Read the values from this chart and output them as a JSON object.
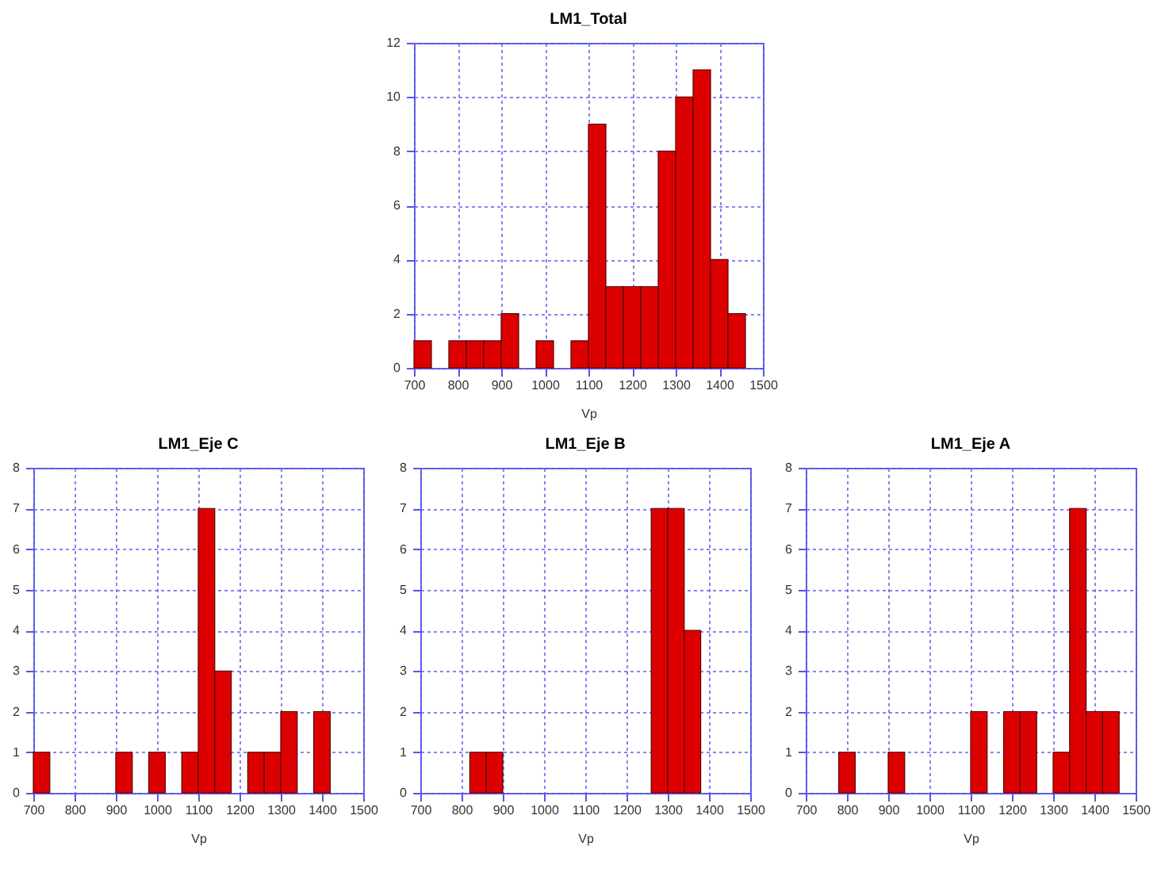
{
  "chart_data": [
    {
      "type": "histogram",
      "title": "LM1_Total",
      "xlabel": "Vp",
      "bins": [
        700,
        740,
        780,
        820,
        860,
        900,
        940,
        980,
        1020,
        1060,
        1100,
        1140,
        1180,
        1220,
        1260,
        1300,
        1340,
        1380,
        1420,
        1460
      ],
      "values": [
        1,
        0,
        1,
        1,
        1,
        2,
        0,
        1,
        0,
        1,
        9,
        3,
        3,
        3,
        8,
        10,
        11,
        4,
        2
      ],
      "color": "#dd0000",
      "xlim": [
        700,
        1500
      ],
      "xticks": [
        700,
        800,
        900,
        1000,
        1100,
        1200,
        1300,
        1400,
        1500
      ],
      "ylim": [
        0,
        12
      ],
      "yticks": [
        0,
        2,
        4,
        6,
        8,
        10,
        12
      ],
      "grid": true
    },
    {
      "type": "histogram",
      "title": "LM1_Eje C",
      "xlabel": "Vp",
      "bins": [
        700,
        740,
        780,
        820,
        860,
        900,
        940,
        980,
        1020,
        1060,
        1100,
        1140,
        1180,
        1220,
        1260,
        1300,
        1340,
        1380,
        1420,
        1460
      ],
      "values": [
        1,
        0,
        0,
        0,
        0,
        1,
        0,
        1,
        0,
        1,
        7,
        3,
        0,
        1,
        1,
        2,
        0,
        2,
        0
      ],
      "color": "#dd0000",
      "xlim": [
        700,
        1500
      ],
      "xticks": [
        700,
        800,
        900,
        1000,
        1100,
        1200,
        1300,
        1400,
        1500
      ],
      "ylim": [
        0,
        8
      ],
      "yticks": [
        0,
        1,
        2,
        3,
        4,
        5,
        6,
        7,
        8
      ],
      "grid": true
    },
    {
      "type": "histogram",
      "title": "LM1_Eje B",
      "xlabel": "Vp",
      "bins": [
        700,
        740,
        780,
        820,
        860,
        900,
        940,
        980,
        1020,
        1060,
        1100,
        1140,
        1180,
        1220,
        1260,
        1300,
        1340,
        1380,
        1420,
        1460
      ],
      "values": [
        0,
        0,
        0,
        1,
        1,
        0,
        0,
        0,
        0,
        0,
        0,
        0,
        0,
        0,
        7,
        7,
        4,
        0,
        0
      ],
      "color": "#dd0000",
      "xlim": [
        700,
        1500
      ],
      "xticks": [
        700,
        800,
        900,
        1000,
        1100,
        1200,
        1300,
        1400,
        1500
      ],
      "ylim": [
        0,
        8
      ],
      "yticks": [
        0,
        1,
        2,
        3,
        4,
        5,
        6,
        7,
        8
      ],
      "grid": true
    },
    {
      "type": "histogram",
      "title": "LM1_Eje A",
      "xlabel": "Vp",
      "bins": [
        700,
        740,
        780,
        820,
        860,
        900,
        940,
        980,
        1020,
        1060,
        1100,
        1140,
        1180,
        1220,
        1260,
        1300,
        1340,
        1380,
        1420,
        1460
      ],
      "values": [
        0,
        0,
        1,
        0,
        0,
        1,
        0,
        0,
        0,
        0,
        2,
        0,
        2,
        2,
        0,
        1,
        7,
        2,
        2
      ],
      "color": "#dd0000",
      "xlim": [
        700,
        1500
      ],
      "xticks": [
        700,
        800,
        900,
        1000,
        1100,
        1200,
        1300,
        1400,
        1500
      ],
      "ylim": [
        0,
        8
      ],
      "yticks": [
        0,
        1,
        2,
        3,
        4,
        5,
        6,
        7,
        8
      ],
      "grid": true
    }
  ]
}
